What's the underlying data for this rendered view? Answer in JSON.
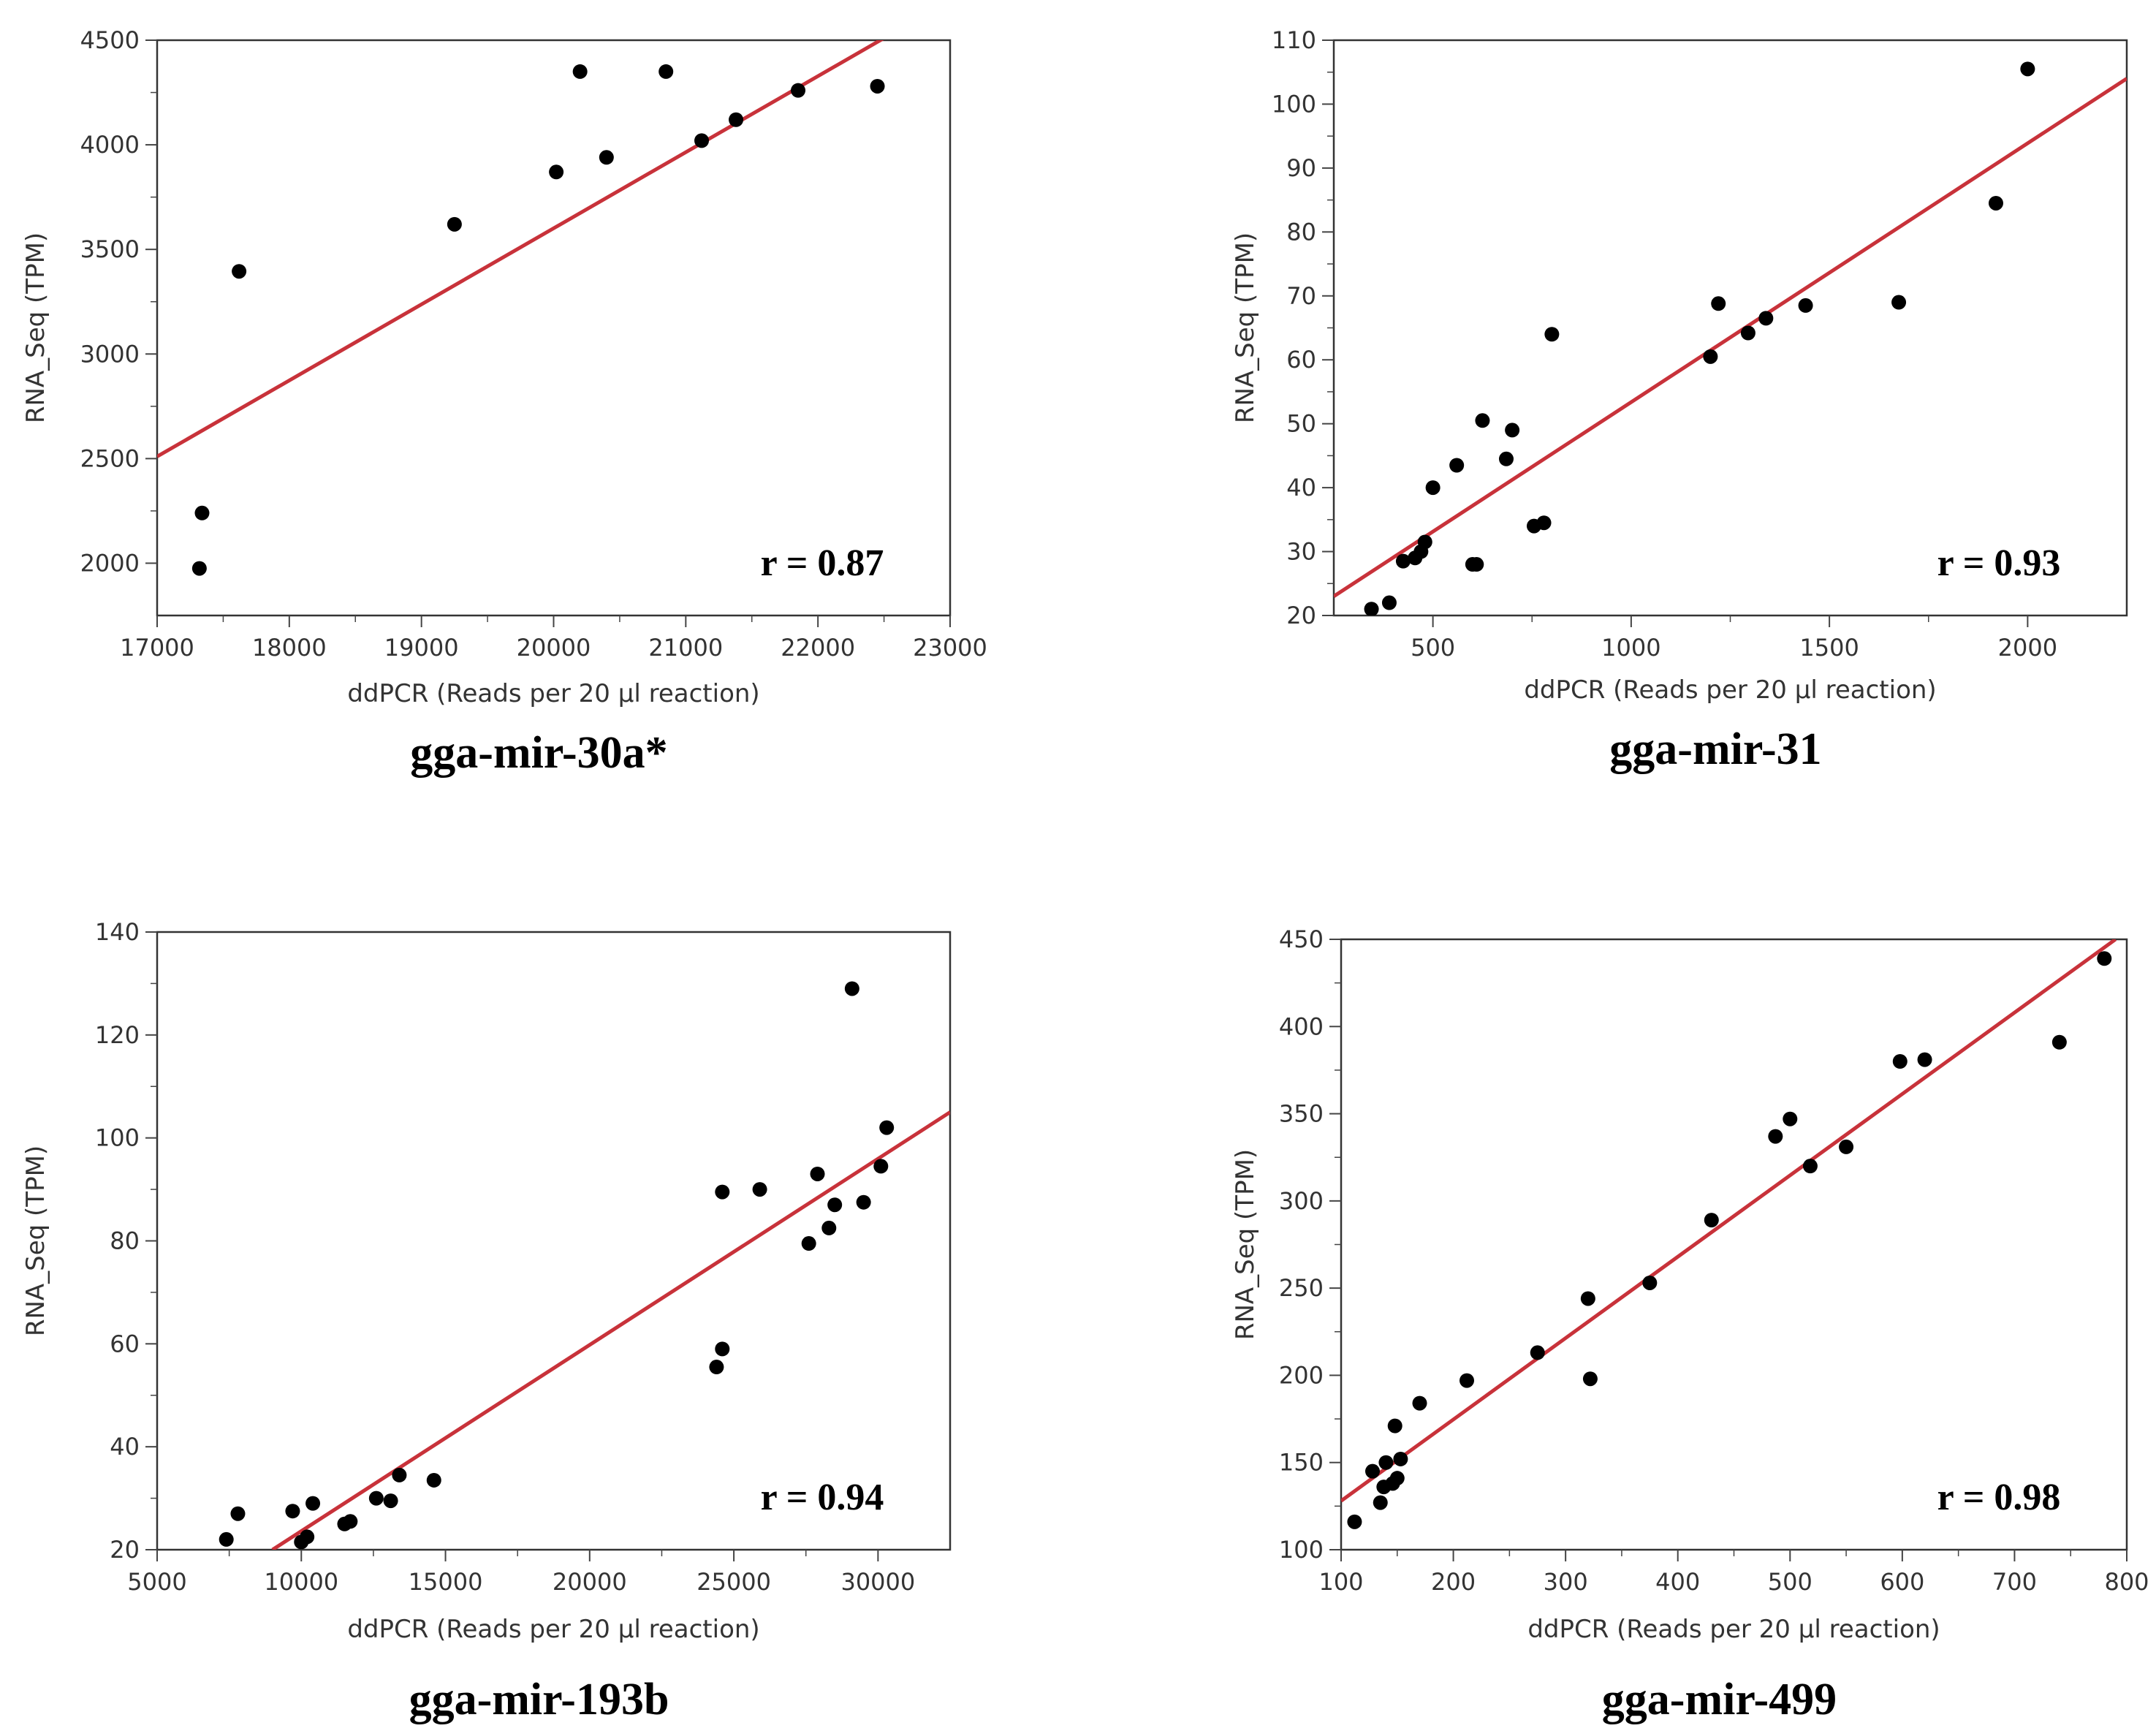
{
  "chart_data": [
    {
      "type": "scatter",
      "title": "gga-mir-30a*",
      "xlabel": "ddPCR (Reads per 20 µl reaction)",
      "ylabel": "RNA_Seq (TPM)",
      "xlim": [
        17000,
        23000
      ],
      "ylim": [
        1750,
        4500
      ],
      "xticks": [
        17000,
        18000,
        19000,
        20000,
        21000,
        22000,
        23000
      ],
      "yticks": [
        2000,
        2500,
        3000,
        3500,
        4000,
        4500
      ],
      "annotation": "r = 0.87",
      "fit_line": {
        "x": [
          17000,
          22500
        ],
        "y": [
          2510,
          4510
        ]
      },
      "points": [
        [
          17320,
          1975
        ],
        [
          17340,
          2240
        ],
        [
          17620,
          3395
        ],
        [
          19250,
          3620
        ],
        [
          20020,
          3870
        ],
        [
          20200,
          4350
        ],
        [
          20400,
          3940
        ],
        [
          20850,
          4350
        ],
        [
          21120,
          4020
        ],
        [
          21380,
          4120
        ],
        [
          21850,
          4260
        ],
        [
          22450,
          4280
        ]
      ]
    },
    {
      "type": "scatter",
      "title": "gga-mir-31",
      "xlabel": "ddPCR (Reads per 20 µl reaction)",
      "ylabel": "RNA_Seq (TPM)",
      "xlim": [
        250,
        2250
      ],
      "ylim": [
        20,
        110
      ],
      "xticks": [
        500,
        1000,
        1500,
        2000
      ],
      "yticks": [
        20,
        30,
        40,
        50,
        60,
        70,
        80,
        90,
        100,
        110
      ],
      "annotation": "r = 0.93",
      "fit_line": {
        "x": [
          250,
          2250
        ],
        "y": [
          23,
          104
        ]
      },
      "points": [
        [
          345,
          21
        ],
        [
          390,
          22
        ],
        [
          425,
          28.5
        ],
        [
          455,
          29
        ],
        [
          470,
          30
        ],
        [
          480,
          31.5
        ],
        [
          500,
          40
        ],
        [
          560,
          43.5
        ],
        [
          600,
          28
        ],
        [
          610,
          28
        ],
        [
          625,
          50.5
        ],
        [
          685,
          44.5
        ],
        [
          700,
          49
        ],
        [
          755,
          34
        ],
        [
          780,
          34.5
        ],
        [
          800,
          64
        ],
        [
          1200,
          60.5
        ],
        [
          1220,
          68.8
        ],
        [
          1295,
          64.2
        ],
        [
          1340,
          66.5
        ],
        [
          1440,
          68.5
        ],
        [
          1675,
          69
        ],
        [
          1920,
          84.5
        ],
        [
          2000,
          105.5
        ]
      ]
    },
    {
      "type": "scatter",
      "title": "gga-mir-193b",
      "xlabel": "ddPCR (Reads per 20 µl reaction)",
      "ylabel": "RNA_Seq (TPM)",
      "xlim": [
        5000,
        32500
      ],
      "ylim": [
        20,
        140
      ],
      "xticks": [
        5000,
        10000,
        15000,
        20000,
        25000,
        30000
      ],
      "yticks": [
        20,
        40,
        60,
        80,
        100,
        120,
        140
      ],
      "annotation": "r = 0.94",
      "fit_line": {
        "x": [
          9000,
          32500
        ],
        "y": [
          20,
          105
        ]
      },
      "points": [
        [
          7400,
          22
        ],
        [
          7800,
          27
        ],
        [
          9700,
          27.5
        ],
        [
          10000,
          21.5
        ],
        [
          10200,
          22.5
        ],
        [
          10400,
          29
        ],
        [
          11500,
          25
        ],
        [
          11700,
          25.5
        ],
        [
          12600,
          30
        ],
        [
          13100,
          29.5
        ],
        [
          13400,
          34.5
        ],
        [
          14600,
          33.5
        ],
        [
          24400,
          55.5
        ],
        [
          24600,
          59
        ],
        [
          24600,
          89.5
        ],
        [
          25900,
          90
        ],
        [
          27600,
          79.5
        ],
        [
          27900,
          93
        ],
        [
          28300,
          82.5
        ],
        [
          28500,
          87
        ],
        [
          29100,
          129
        ],
        [
          29500,
          87.5
        ],
        [
          30100,
          94.5
        ],
        [
          30300,
          102
        ]
      ]
    },
    {
      "type": "scatter",
      "title": "gga-mir-499",
      "xlabel": "ddPCR (Reads per 20 µl reaction)",
      "ylabel": "RNA_Seq (TPM)",
      "xlim": [
        100,
        800
      ],
      "ylim": [
        100,
        450
      ],
      "xticks": [
        100,
        200,
        300,
        400,
        500,
        600,
        700,
        800
      ],
      "yticks": [
        100,
        150,
        200,
        250,
        300,
        350,
        400,
        450
      ],
      "annotation": "r = 0.98",
      "fit_line": {
        "x": [
          100,
          790
        ],
        "y": [
          128,
          450
        ]
      },
      "points": [
        [
          112,
          116
        ],
        [
          128,
          145
        ],
        [
          135,
          127
        ],
        [
          138,
          136
        ],
        [
          140,
          150
        ],
        [
          146,
          138
        ],
        [
          148,
          171
        ],
        [
          150,
          141
        ],
        [
          153,
          152
        ],
        [
          170,
          184
        ],
        [
          212,
          197
        ],
        [
          275,
          213
        ],
        [
          320,
          244
        ],
        [
          322,
          198
        ],
        [
          375,
          253
        ],
        [
          430,
          289
        ],
        [
          487,
          337
        ],
        [
          500,
          347
        ],
        [
          518,
          320
        ],
        [
          550,
          331
        ],
        [
          598,
          380
        ],
        [
          620,
          381
        ],
        [
          740,
          391
        ],
        [
          780,
          439
        ]
      ]
    }
  ]
}
